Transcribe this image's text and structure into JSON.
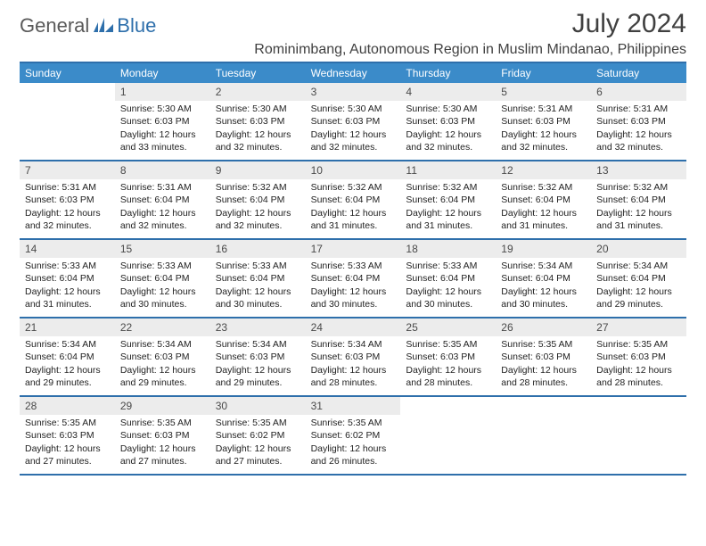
{
  "logo": {
    "text1": "General",
    "text2": "Blue"
  },
  "title": "July 2024",
  "location": "Rominimbang, Autonomous Region in Muslim Mindanao, Philippines",
  "colors": {
    "header_bg": "#3b8bc9",
    "header_border": "#2e6fab",
    "daynum_bg": "#ececec",
    "text": "#404040",
    "logo_gray": "#5a5a5a",
    "logo_blue": "#2e6fab"
  },
  "weekdays": [
    "Sunday",
    "Monday",
    "Tuesday",
    "Wednesday",
    "Thursday",
    "Friday",
    "Saturday"
  ],
  "weeks": [
    [
      {
        "num": "",
        "sunrise": "",
        "sunset": "",
        "daylight": ""
      },
      {
        "num": "1",
        "sunrise": "Sunrise: 5:30 AM",
        "sunset": "Sunset: 6:03 PM",
        "daylight": "Daylight: 12 hours and 33 minutes."
      },
      {
        "num": "2",
        "sunrise": "Sunrise: 5:30 AM",
        "sunset": "Sunset: 6:03 PM",
        "daylight": "Daylight: 12 hours and 32 minutes."
      },
      {
        "num": "3",
        "sunrise": "Sunrise: 5:30 AM",
        "sunset": "Sunset: 6:03 PM",
        "daylight": "Daylight: 12 hours and 32 minutes."
      },
      {
        "num": "4",
        "sunrise": "Sunrise: 5:30 AM",
        "sunset": "Sunset: 6:03 PM",
        "daylight": "Daylight: 12 hours and 32 minutes."
      },
      {
        "num": "5",
        "sunrise": "Sunrise: 5:31 AM",
        "sunset": "Sunset: 6:03 PM",
        "daylight": "Daylight: 12 hours and 32 minutes."
      },
      {
        "num": "6",
        "sunrise": "Sunrise: 5:31 AM",
        "sunset": "Sunset: 6:03 PM",
        "daylight": "Daylight: 12 hours and 32 minutes."
      }
    ],
    [
      {
        "num": "7",
        "sunrise": "Sunrise: 5:31 AM",
        "sunset": "Sunset: 6:03 PM",
        "daylight": "Daylight: 12 hours and 32 minutes."
      },
      {
        "num": "8",
        "sunrise": "Sunrise: 5:31 AM",
        "sunset": "Sunset: 6:04 PM",
        "daylight": "Daylight: 12 hours and 32 minutes."
      },
      {
        "num": "9",
        "sunrise": "Sunrise: 5:32 AM",
        "sunset": "Sunset: 6:04 PM",
        "daylight": "Daylight: 12 hours and 32 minutes."
      },
      {
        "num": "10",
        "sunrise": "Sunrise: 5:32 AM",
        "sunset": "Sunset: 6:04 PM",
        "daylight": "Daylight: 12 hours and 31 minutes."
      },
      {
        "num": "11",
        "sunrise": "Sunrise: 5:32 AM",
        "sunset": "Sunset: 6:04 PM",
        "daylight": "Daylight: 12 hours and 31 minutes."
      },
      {
        "num": "12",
        "sunrise": "Sunrise: 5:32 AM",
        "sunset": "Sunset: 6:04 PM",
        "daylight": "Daylight: 12 hours and 31 minutes."
      },
      {
        "num": "13",
        "sunrise": "Sunrise: 5:32 AM",
        "sunset": "Sunset: 6:04 PM",
        "daylight": "Daylight: 12 hours and 31 minutes."
      }
    ],
    [
      {
        "num": "14",
        "sunrise": "Sunrise: 5:33 AM",
        "sunset": "Sunset: 6:04 PM",
        "daylight": "Daylight: 12 hours and 31 minutes."
      },
      {
        "num": "15",
        "sunrise": "Sunrise: 5:33 AM",
        "sunset": "Sunset: 6:04 PM",
        "daylight": "Daylight: 12 hours and 30 minutes."
      },
      {
        "num": "16",
        "sunrise": "Sunrise: 5:33 AM",
        "sunset": "Sunset: 6:04 PM",
        "daylight": "Daylight: 12 hours and 30 minutes."
      },
      {
        "num": "17",
        "sunrise": "Sunrise: 5:33 AM",
        "sunset": "Sunset: 6:04 PM",
        "daylight": "Daylight: 12 hours and 30 minutes."
      },
      {
        "num": "18",
        "sunrise": "Sunrise: 5:33 AM",
        "sunset": "Sunset: 6:04 PM",
        "daylight": "Daylight: 12 hours and 30 minutes."
      },
      {
        "num": "19",
        "sunrise": "Sunrise: 5:34 AM",
        "sunset": "Sunset: 6:04 PM",
        "daylight": "Daylight: 12 hours and 30 minutes."
      },
      {
        "num": "20",
        "sunrise": "Sunrise: 5:34 AM",
        "sunset": "Sunset: 6:04 PM",
        "daylight": "Daylight: 12 hours and 29 minutes."
      }
    ],
    [
      {
        "num": "21",
        "sunrise": "Sunrise: 5:34 AM",
        "sunset": "Sunset: 6:04 PM",
        "daylight": "Daylight: 12 hours and 29 minutes."
      },
      {
        "num": "22",
        "sunrise": "Sunrise: 5:34 AM",
        "sunset": "Sunset: 6:03 PM",
        "daylight": "Daylight: 12 hours and 29 minutes."
      },
      {
        "num": "23",
        "sunrise": "Sunrise: 5:34 AM",
        "sunset": "Sunset: 6:03 PM",
        "daylight": "Daylight: 12 hours and 29 minutes."
      },
      {
        "num": "24",
        "sunrise": "Sunrise: 5:34 AM",
        "sunset": "Sunset: 6:03 PM",
        "daylight": "Daylight: 12 hours and 28 minutes."
      },
      {
        "num": "25",
        "sunrise": "Sunrise: 5:35 AM",
        "sunset": "Sunset: 6:03 PM",
        "daylight": "Daylight: 12 hours and 28 minutes."
      },
      {
        "num": "26",
        "sunrise": "Sunrise: 5:35 AM",
        "sunset": "Sunset: 6:03 PM",
        "daylight": "Daylight: 12 hours and 28 minutes."
      },
      {
        "num": "27",
        "sunrise": "Sunrise: 5:35 AM",
        "sunset": "Sunset: 6:03 PM",
        "daylight": "Daylight: 12 hours and 28 minutes."
      }
    ],
    [
      {
        "num": "28",
        "sunrise": "Sunrise: 5:35 AM",
        "sunset": "Sunset: 6:03 PM",
        "daylight": "Daylight: 12 hours and 27 minutes."
      },
      {
        "num": "29",
        "sunrise": "Sunrise: 5:35 AM",
        "sunset": "Sunset: 6:03 PM",
        "daylight": "Daylight: 12 hours and 27 minutes."
      },
      {
        "num": "30",
        "sunrise": "Sunrise: 5:35 AM",
        "sunset": "Sunset: 6:02 PM",
        "daylight": "Daylight: 12 hours and 27 minutes."
      },
      {
        "num": "31",
        "sunrise": "Sunrise: 5:35 AM",
        "sunset": "Sunset: 6:02 PM",
        "daylight": "Daylight: 12 hours and 26 minutes."
      },
      {
        "num": "",
        "sunrise": "",
        "sunset": "",
        "daylight": ""
      },
      {
        "num": "",
        "sunrise": "",
        "sunset": "",
        "daylight": ""
      },
      {
        "num": "",
        "sunrise": "",
        "sunset": "",
        "daylight": ""
      }
    ]
  ]
}
